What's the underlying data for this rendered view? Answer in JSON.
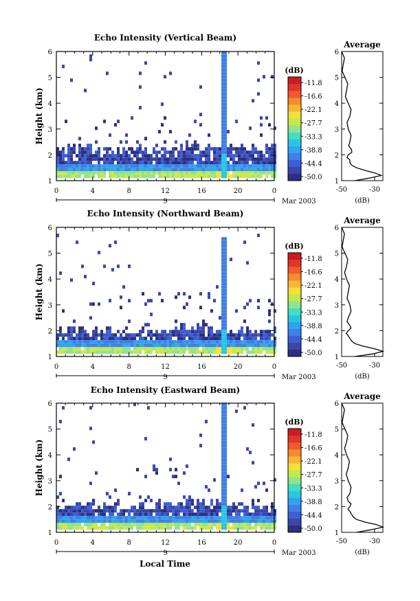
{
  "panels": [
    {
      "title": "Echo Intensity (Vertical Beam)",
      "beam": "vertical",
      "spike_extent_km": 5.9,
      "layer_top_km": 2.15
    },
    {
      "title": "Echo Intensity (Northward Beam)",
      "beam": "northward",
      "spike_extent_km": 5.5,
      "layer_top_km": 1.95
    },
    {
      "title": "Echo Intensity (Eastward Beam)",
      "beam": "eastward",
      "spike_extent_km": 5.9,
      "layer_top_km": 2.0
    }
  ],
  "shared": {
    "ylabel": "Height (km)",
    "xlabel": "Local Time",
    "x_ticks": [
      "0",
      "4",
      "8",
      "12",
      "16",
      "20",
      "0"
    ],
    "day_label": "9",
    "month_label": "Mar 2003",
    "y_ticks": [
      "1",
      "2",
      "3",
      "4",
      "5",
      "6"
    ],
    "colorbar_unit": "(dB)",
    "colorbar_ticks": [
      "-11.8",
      "-16.6",
      "-22.1",
      "-27.7",
      "-33.3",
      "-38.8",
      "-44.4",
      "-50.0"
    ],
    "profile_title": "Average",
    "profile_xlabel": "(dB)",
    "profile_x_ticks": [
      "-50",
      "-30"
    ],
    "colors": {
      "scale": [
        "#2c2f7f",
        "#3a46a8",
        "#3e5ed6",
        "#3f7fe8",
        "#30a4ee",
        "#27c6e4",
        "#46dcc0",
        "#8fe48e",
        "#c8e84c",
        "#f0e23a",
        "#f7b733",
        "#f58a30",
        "#f05a2c",
        "#e3332a",
        "#c81d24"
      ]
    }
  },
  "chart_data": [
    {
      "type": "heatmap",
      "title": "Echo Intensity (Vertical Beam)",
      "xlabel": "",
      "ylabel": "Height (km)",
      "x_range_hours": [
        0,
        24
      ],
      "ylim": [
        1,
        6
      ],
      "units": "dB",
      "color_range": [
        -50.0,
        -11.8
      ],
      "profile": {
        "title": "Average",
        "xlabel": "(dB)",
        "xlim": [
          -50,
          -25
        ],
        "heights": [
          1.0,
          1.1,
          1.2,
          1.3,
          1.4,
          1.5,
          1.6,
          1.7,
          1.8,
          2.0,
          2.2,
          2.5,
          3.0,
          3.5,
          4.0,
          4.5,
          5.0,
          5.5,
          6.0
        ],
        "values": [
          -42,
          -33,
          -26,
          -30,
          -36,
          -41,
          -44,
          -45,
          -45,
          -46,
          -44,
          -45,
          -46,
          -45,
          -46,
          -47,
          -48,
          -49,
          -50
        ]
      }
    },
    {
      "type": "heatmap",
      "title": "Echo Intensity (Northward Beam)",
      "xlabel": "",
      "ylabel": "Height (km)",
      "x_range_hours": [
        0,
        24
      ],
      "ylim": [
        1,
        6
      ],
      "units": "dB",
      "color_range": [
        -50.0,
        -11.8
      ],
      "profile": {
        "title": "Average",
        "xlabel": "(dB)",
        "xlim": [
          -50,
          -25
        ],
        "heights": [
          1.0,
          1.1,
          1.2,
          1.3,
          1.4,
          1.5,
          1.6,
          1.7,
          1.8,
          2.0,
          2.2,
          2.5,
          3.0,
          3.5,
          4.0,
          4.5,
          5.0,
          5.5,
          6.0
        ],
        "values": [
          -42,
          -31,
          -25,
          -30,
          -37,
          -42,
          -44,
          -45,
          -46,
          -46,
          -45,
          -46,
          -45,
          -46,
          -47,
          -47,
          -48,
          -49,
          -50
        ]
      }
    },
    {
      "type": "heatmap",
      "title": "Echo Intensity (Eastward Beam)",
      "xlabel": "Local Time",
      "ylabel": "Height (km)",
      "x_range_hours": [
        0,
        24
      ],
      "ylim": [
        1,
        6
      ],
      "units": "dB",
      "color_range": [
        -50.0,
        -11.8
      ],
      "profile": {
        "title": "Average",
        "xlabel": "(dB)",
        "xlim": [
          -50,
          -25
        ],
        "heights": [
          1.0,
          1.1,
          1.2,
          1.3,
          1.4,
          1.5,
          1.6,
          1.7,
          1.8,
          2.0,
          2.2,
          2.5,
          3.0,
          3.5,
          4.0,
          4.5,
          5.0,
          5.5,
          6.0
        ],
        "values": [
          -41,
          -32,
          -25,
          -29,
          -36,
          -41,
          -43,
          -44,
          -45,
          -45,
          -46,
          -45,
          -46,
          -46,
          -47,
          -47,
          -48,
          -49,
          -50
        ]
      }
    }
  ]
}
